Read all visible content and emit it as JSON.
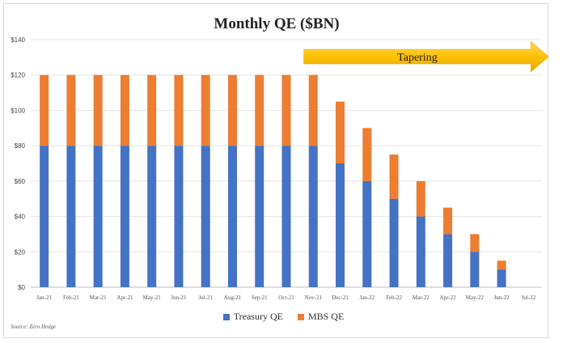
{
  "chart_data": {
    "type": "bar",
    "stacked": true,
    "title": "Monthly QE ($BN)",
    "categories": [
      "Jan-21",
      "Feb-21",
      "Mar-21",
      "Apr-21",
      "May-21",
      "Jun-21",
      "Jul-21",
      "Aug-21",
      "Sep-21",
      "Oct-21",
      "Nov-21",
      "Dec-21",
      "Jan-22",
      "Feb-22",
      "Mar-22",
      "Apr-22",
      "May-22",
      "Jun-22",
      "Jul-22"
    ],
    "series": [
      {
        "name": "Treasury QE",
        "color": "#4472C4",
        "values": [
          80,
          80,
          80,
          80,
          80,
          80,
          80,
          80,
          80,
          80,
          80,
          70,
          60,
          50,
          40,
          30,
          20,
          10,
          0
        ]
      },
      {
        "name": "MBS QE",
        "color": "#ED7D31",
        "values": [
          40,
          40,
          40,
          40,
          40,
          40,
          40,
          40,
          40,
          40,
          40,
          35,
          30,
          25,
          20,
          15,
          10,
          5,
          0
        ]
      }
    ],
    "ylim": [
      0,
      140
    ],
    "yticks": [
      0,
      20,
      40,
      60,
      80,
      100,
      120,
      140
    ],
    "ytick_labels": [
      "$0",
      "$20",
      "$40",
      "$60",
      "$80",
      "$100",
      "$120",
      "$140"
    ],
    "grid": true,
    "legend_position": "bottom",
    "annotation": {
      "text": "Tapering",
      "start_category": "Nov-21",
      "end_category": "Jul-22",
      "color": "#FFC000"
    },
    "source": "Source: Zero Hedge"
  }
}
